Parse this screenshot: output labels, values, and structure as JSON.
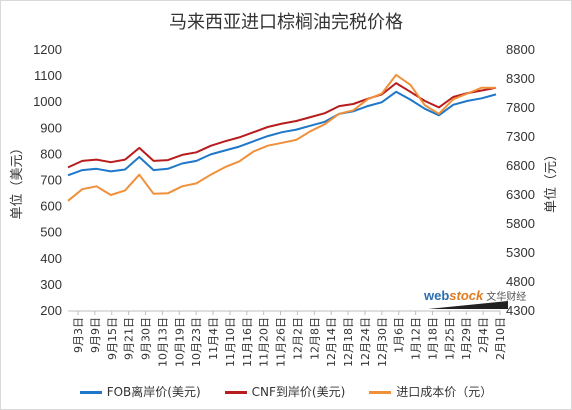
{
  "chart_data": {
    "type": "line",
    "title": "马来西亚进口棕榈油完税价格",
    "ylabel_left": "单位（美元）",
    "ylabel_right": "单位（元）",
    "ylim_left": [
      200,
      1200
    ],
    "ylim_right": [
      4300,
      8800
    ],
    "yticks_left": [
      200,
      300,
      400,
      500,
      600,
      700,
      800,
      900,
      1000,
      1100,
      1200
    ],
    "yticks_right": [
      4300,
      4800,
      5300,
      5800,
      6300,
      6800,
      7300,
      7800,
      8300,
      8800
    ],
    "x_tick_labels": [
      "9月3日",
      "9月9日",
      "9月15日",
      "9月21日",
      "9月30日",
      "10月13日",
      "10月19日",
      "10月23日",
      "11月4日",
      "11月10日",
      "11月16日",
      "11月20日",
      "11月26日",
      "12月2日",
      "12月8日",
      "12月14日",
      "12月18日",
      "12月24日",
      "12月30日",
      "1月6日",
      "1月12日",
      "1月18日",
      "1月25日",
      "1月29日",
      "2月4日",
      "2月10日"
    ],
    "grid": false,
    "legend_position": "bottom",
    "series": [
      {
        "name": "FOB离岸价(美元)",
        "axis": "left",
        "color": "#1f77c9",
        "values": [
          720,
          740,
          745,
          735,
          742,
          790,
          740,
          745,
          765,
          775,
          800,
          815,
          830,
          850,
          870,
          885,
          895,
          910,
          925,
          955,
          965,
          985,
          1000,
          1040,
          1010,
          975,
          950,
          990,
          1005,
          1015,
          1030
        ]
      },
      {
        "name": "CNF到岸价(美元)",
        "axis": "left",
        "color": "#b81c1c",
        "values": [
          750,
          775,
          780,
          770,
          780,
          825,
          775,
          778,
          798,
          808,
          833,
          850,
          865,
          885,
          905,
          918,
          928,
          943,
          958,
          985,
          993,
          1013,
          1030,
          1073,
          1040,
          1005,
          980,
          1020,
          1035,
          1045,
          1055
        ]
      },
      {
        "name": "进口成本价（元）",
        "axis": "right",
        "color": "#f0903a",
        "values": [
          6200,
          6400,
          6450,
          6300,
          6380,
          6650,
          6320,
          6330,
          6450,
          6500,
          6650,
          6780,
          6880,
          7050,
          7150,
          7200,
          7250,
          7400,
          7520,
          7700,
          7760,
          7950,
          8050,
          8370,
          8200,
          7850,
          7700,
          7950,
          8050,
          8150,
          8150
        ]
      }
    ]
  },
  "watermark": {
    "brand_web": "web",
    "brand_stock": "stock",
    "brand_cn": "文华财经"
  }
}
